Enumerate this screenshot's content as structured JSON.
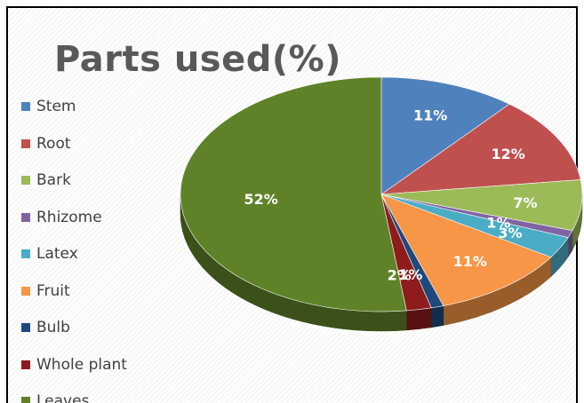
{
  "chart_data": {
    "type": "pie",
    "title": "Parts used(%)",
    "categories": [
      "Stem",
      "Root",
      "Bark",
      "Rhizome",
      "Latex",
      "Fruit",
      "Bulb",
      "Whole plant",
      "Leaves"
    ],
    "values": [
      11,
      12,
      7,
      1,
      3,
      11,
      1,
      2,
      52
    ],
    "labels": [
      "11%",
      "12%",
      "7%",
      "1%",
      "3%",
      "11%",
      "1%",
      "2%",
      "52%"
    ],
    "colors": [
      "#4F81BD",
      "#C0504D",
      "#9BBB59",
      "#8064A2",
      "#4BACC6",
      "#F79646",
      "#1F497D",
      "#8E1C1C",
      "#5F8228"
    ],
    "legend_position": "left",
    "style": "3d"
  }
}
